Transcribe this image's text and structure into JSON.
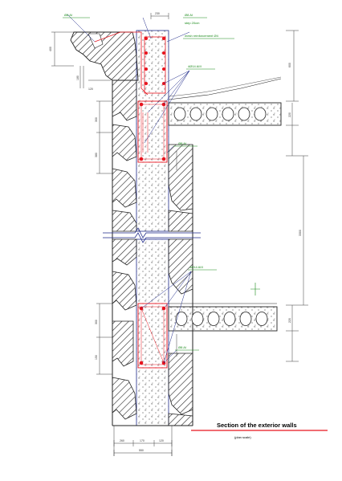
{
  "title": "Section of the exterior walls",
  "scale": "(plan scale)",
  "colors": {
    "line": "#1f2a8a",
    "rebar": "#e8141e",
    "label": "#1a8a1a",
    "dim": "#3c3c3c",
    "hatch": "#222222",
    "title_underline": "#e8141e"
  },
  "annotations": {
    "top_left_rebar": "Ø8 AI",
    "top_right_rebar": "Ø8 AI",
    "stirrup": "step 20cm",
    "mesh": "mesh reinforcement Ø4",
    "ring_beam_upper": "4Ø14 AIII",
    "beam_bottom_upper": "Ø8 AI",
    "ring_beam_lower": "4Ø14 AIII",
    "beam_bottom_lower": "Ø8 AI"
  },
  "dimensions": {
    "cornice_height": "400",
    "top_width": "230",
    "upper_left": "180",
    "upper_left_2": "120",
    "ring_beam_height": "300",
    "ring_beam_lower_height": "300",
    "lower_left": "380",
    "lower_left_2": "150",
    "right_top": "600",
    "right_slab": "220",
    "right_floor": "3300",
    "right_lower_slab": "220",
    "bottom_1": "260",
    "bottom_2": "170",
    "bottom_3": "120",
    "total_width": "550"
  }
}
